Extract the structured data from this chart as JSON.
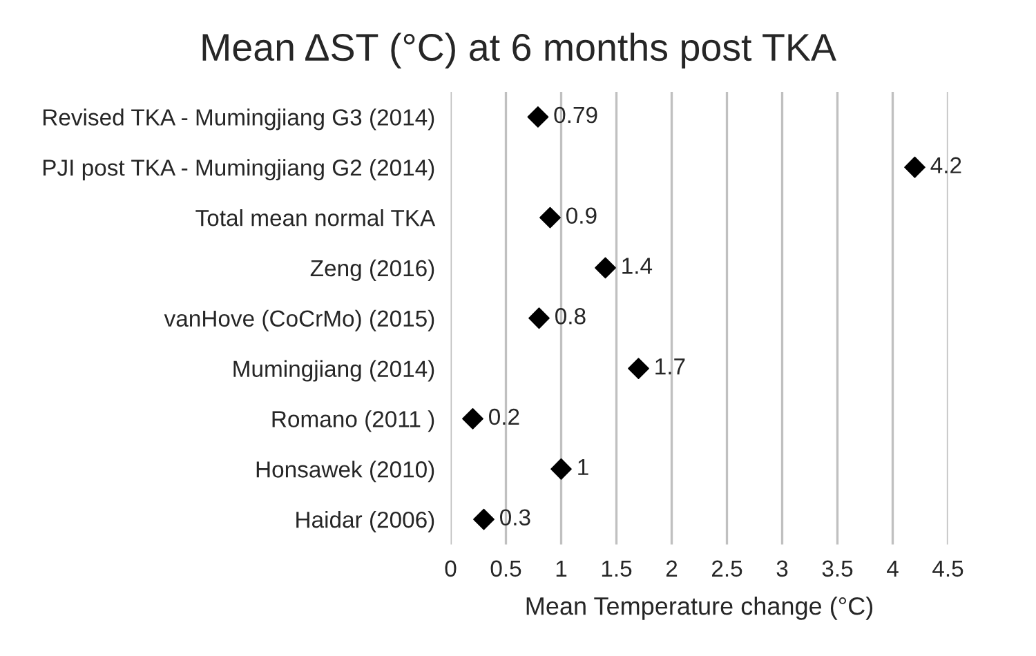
{
  "chart_data": {
    "type": "scatter",
    "orientation": "horizontal",
    "title": "Mean ΔST (°C) at 6 months post TKA",
    "xlabel": "Mean Temperature change (°C)",
    "categories": [
      "Revised TKA - Mumingjiang G3 (2014)",
      "PJI post TKA - Mumingjiang G2 (2014)",
      "Total mean normal TKA",
      "Zeng (2016)",
      "vanHove (CoCrMo) (2015)",
      "Mumingjiang (2014)",
      "Romano (2011 )",
      "Honsawek (2010)",
      "Haidar (2006)"
    ],
    "values": [
      0.79,
      4.2,
      0.9,
      1.4,
      0.8,
      1.7,
      0.2,
      1,
      0.3
    ],
    "color": "#000000",
    "marker": "diamond",
    "data_labels": true,
    "grid": "x",
    "xlim": [
      0,
      4.5
    ],
    "xticks": [
      0,
      0.5,
      1,
      1.5,
      2,
      2.5,
      3,
      3.5,
      4,
      4.5
    ]
  }
}
